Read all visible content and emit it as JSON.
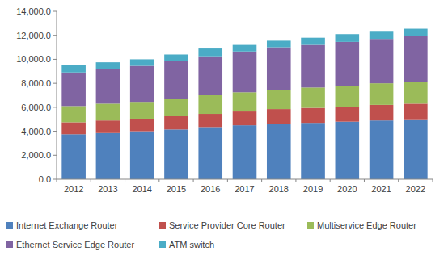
{
  "chart_data": {
    "type": "bar",
    "stacked": true,
    "grid": false,
    "legend": "bottom",
    "categories": [
      "2012",
      "2013",
      "2014",
      "2015",
      "2016",
      "2017",
      "2018",
      "2019",
      "2020",
      "2021",
      "2022"
    ],
    "ylim": [
      0,
      14000
    ],
    "yticks": [
      {
        "value": 0,
        "label": "0.0"
      },
      {
        "value": 2000,
        "label": "2,000.0"
      },
      {
        "value": 4000,
        "label": "4,000.0"
      },
      {
        "value": 6000,
        "label": "6,000.0"
      },
      {
        "value": 8000,
        "label": "8,000.0"
      },
      {
        "value": 10000,
        "label": "10,000.0"
      },
      {
        "value": 12000,
        "label": "12,000.0"
      },
      {
        "value": 14000,
        "label": "14,000.0"
      }
    ],
    "series": [
      {
        "name": "Internet Exchange Router",
        "color": "#4f81bd",
        "values": [
          3750,
          3850,
          4000,
          4150,
          4350,
          4500,
          4600,
          4700,
          4800,
          4900,
          5000
        ]
      },
      {
        "name": "Service Provider Core Router",
        "color": "#c0504d",
        "values": [
          1000,
          1050,
          1050,
          1100,
          1100,
          1150,
          1250,
          1250,
          1250,
          1300,
          1300
        ]
      },
      {
        "name": "Multiservice Edge Router",
        "color": "#9bbb59",
        "values": [
          1350,
          1400,
          1400,
          1450,
          1550,
          1600,
          1600,
          1700,
          1750,
          1800,
          1800
        ]
      },
      {
        "name": "Ethernet Service Edge Router",
        "color": "#8064a2",
        "values": [
          2800,
          2900,
          3000,
          3150,
          3250,
          3400,
          3550,
          3550,
          3650,
          3700,
          3850
        ]
      },
      {
        "name": "ATM switch",
        "color": "#4bacc6",
        "values": [
          600,
          550,
          550,
          550,
          650,
          550,
          550,
          600,
          650,
          600,
          600
        ]
      }
    ]
  }
}
